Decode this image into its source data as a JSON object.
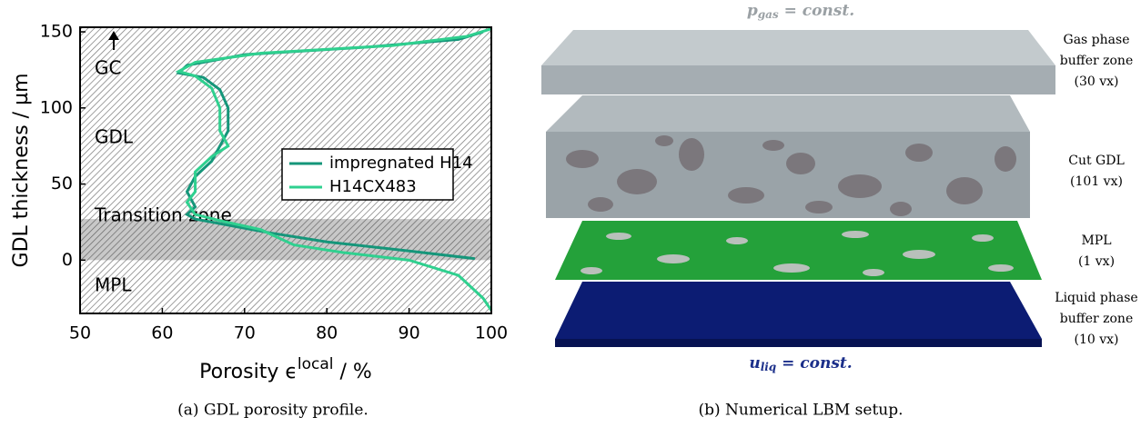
{
  "chart_data": {
    "type": "line",
    "ylabel": "GDL thickness / µm",
    "xlabel_parts": [
      "Porosity ϵ",
      "local",
      " / %"
    ],
    "xlim": [
      50,
      100
    ],
    "xticks": [
      50,
      60,
      70,
      80,
      90,
      100
    ],
    "ylim": [
      -35,
      153
    ],
    "yticks": [
      0,
      50,
      100,
      150
    ],
    "zones": [
      {
        "label": "GC"
      },
      {
        "label": "GDL"
      },
      {
        "label": "Transition zone",
        "range": [
          0,
          27
        ]
      },
      {
        "label": "MPL"
      }
    ],
    "legend": "upper right",
    "series": [
      {
        "name": "impregnated H14",
        "color": "#15967a",
        "x": [
          99,
          96,
          85,
          70,
          63,
          62,
          65,
          67,
          68,
          68,
          67,
          66,
          64,
          63,
          64,
          63,
          64,
          67,
          73,
          80,
          90,
          98
        ],
        "values": [
          150,
          145,
          140,
          135,
          128,
          123,
          120,
          112,
          100,
          85,
          75,
          65,
          55,
          45,
          35,
          30,
          27,
          24,
          18,
          12,
          6,
          1
        ]
      },
      {
        "name": "H14CX483",
        "color": "#2fd08f",
        "x": [
          100,
          97,
          88,
          72,
          64,
          62,
          64,
          66,
          67,
          67,
          68,
          66,
          64,
          64,
          63,
          64,
          67,
          72,
          74,
          76,
          82,
          90,
          96,
          99,
          100
        ],
        "values": [
          152,
          147,
          141,
          136,
          130,
          124,
          121,
          113,
          100,
          85,
          75,
          68,
          58,
          45,
          38,
          30,
          26,
          20,
          15,
          10,
          5,
          0,
          -10,
          -25,
          -33
        ]
      }
    ]
  },
  "diagram": {
    "top_condition": [
      "p",
      "gas",
      " = const."
    ],
    "bottom_condition": [
      "u",
      "liq",
      " = const."
    ],
    "layers": [
      {
        "lines": [
          "Gas phase",
          "buffer zone",
          "(30 vx)"
        ]
      },
      {
        "lines": [
          "Cut GDL",
          "(101 vx)"
        ]
      },
      {
        "lines": [
          "MPL",
          "(1 vx)"
        ]
      },
      {
        "lines": [
          "Liquid phase",
          "buffer zone",
          "(10 vx)"
        ]
      }
    ]
  },
  "captions": [
    "(a) GDL porosity profile.",
    "(b) Numerical LBM setup."
  ]
}
